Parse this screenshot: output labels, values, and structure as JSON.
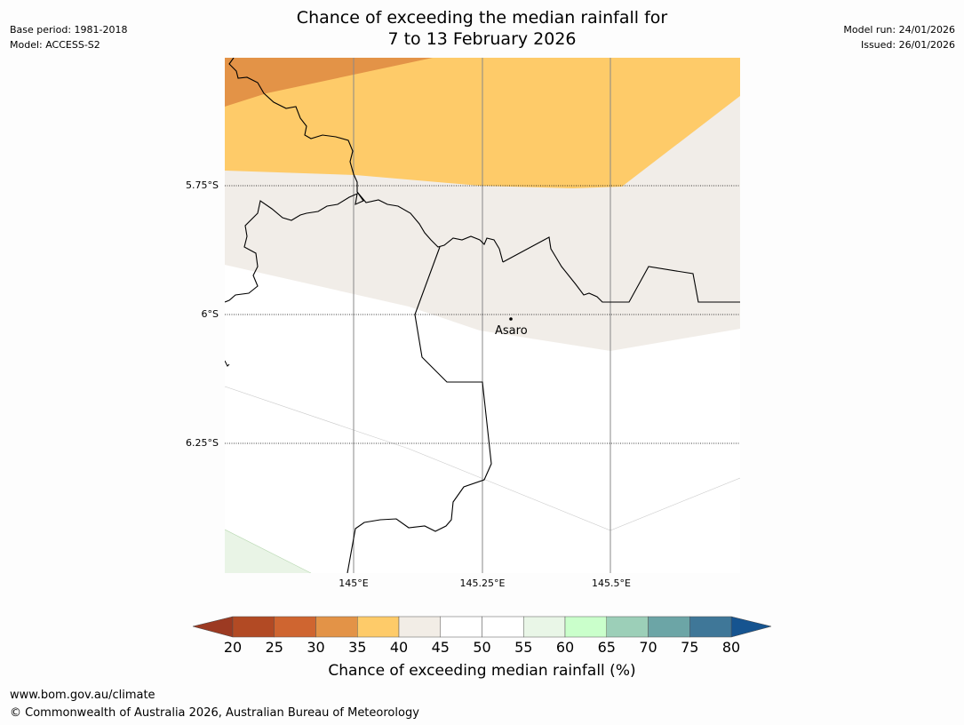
{
  "header": {
    "title_line1": "Chance of exceeding the median rainfall for",
    "title_line2": "7 to 13 February 2026",
    "base_period": "Base period: 1981-2018",
    "model": "Model: ACCESS-S2",
    "model_run": "Model run: 24/01/2026",
    "issued": "Issued: 26/01/2026"
  },
  "map": {
    "lat_labels": [
      "5.75°S",
      "6°S",
      "6.25°S"
    ],
    "lon_labels": [
      "145°E",
      "145.25°E",
      "145.5°E"
    ],
    "place": {
      "name": "Asaro"
    }
  },
  "colorbar": {
    "title": "Chance of exceeding median rainfall (%)",
    "ticks": [
      "20",
      "25",
      "30",
      "35",
      "40",
      "45",
      "50",
      "55",
      "60",
      "65",
      "70",
      "75",
      "80"
    ],
    "colors": [
      "#b24a24",
      "#cf6530",
      "#e39347",
      "#fecb69",
      "#f2ede6",
      "#ffffff",
      "#ffffff",
      "#e9f6e7",
      "#caffcb",
      "#9ccfb8",
      "#6ca5a6",
      "#3f7798"
    ],
    "under_color": "#9c3a22",
    "over_color": "#165490"
  },
  "footer": {
    "url": "www.bom.gov.au/climate",
    "copyright": "© Commonwealth of Australia 2026, Australian Bureau of Meteorology"
  }
}
